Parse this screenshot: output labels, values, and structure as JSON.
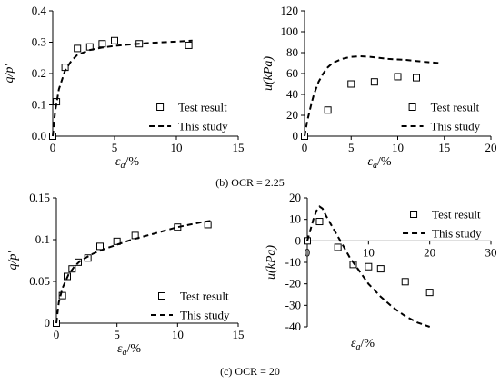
{
  "captions": {
    "b": "(b) OCR = 2.25",
    "c": "(c) OCR = 20"
  },
  "chart_data": [
    {
      "id": "b-left",
      "type": "scatter",
      "xlabel_main": "ε",
      "xlabel_sub": "a",
      "xlabel_unit": "/%",
      "ylabel": "q/p'",
      "xlim": [
        0,
        15
      ],
      "ylim": [
        0,
        0.4
      ],
      "xticks": [
        "0",
        "5",
        "10",
        "15"
      ],
      "yticks": [
        "0.0",
        "0.1",
        "0.2",
        "0.3",
        "0.4"
      ],
      "legend_position": "lower-right",
      "series": [
        {
          "name": "Test result",
          "kind": "markers",
          "x": [
            0.0,
            0.3,
            1.0,
            2.0,
            3.0,
            4.0,
            5.0,
            7.0,
            11.0
          ],
          "y": [
            0.0,
            0.11,
            0.22,
            0.28,
            0.285,
            0.295,
            0.305,
            0.295,
            0.29
          ]
        },
        {
          "name": "This study",
          "kind": "dashed",
          "x": [
            0.0,
            0.2,
            0.5,
            1.0,
            1.5,
            2.0,
            3.0,
            4.0,
            5.0,
            6.0,
            7.0,
            8.0,
            9.0,
            10.0,
            11.3
          ],
          "y": [
            0.0,
            0.08,
            0.15,
            0.21,
            0.24,
            0.26,
            0.275,
            0.283,
            0.288,
            0.292,
            0.295,
            0.298,
            0.3,
            0.302,
            0.305
          ]
        }
      ]
    },
    {
      "id": "b-right",
      "type": "scatter",
      "xlabel_main": "ε",
      "xlabel_sub": "a",
      "xlabel_unit": "/%",
      "ylabel": "u(kPa)",
      "xlim": [
        0,
        20
      ],
      "ylim": [
        0,
        120
      ],
      "xticks": [
        "0",
        "5",
        "10",
        "15",
        "20"
      ],
      "yticks": [
        "0",
        "20",
        "40",
        "60",
        "80",
        "100",
        "120"
      ],
      "legend_position": "lower-right",
      "series": [
        {
          "name": "Test result",
          "kind": "markers",
          "x": [
            0.0,
            2.5,
            5.0,
            7.5,
            10.0,
            12.0
          ],
          "y": [
            0.0,
            25.0,
            50.0,
            52.0,
            57.0,
            56.0
          ]
        },
        {
          "name": "This study",
          "kind": "dashed",
          "x": [
            0.0,
            0.3,
            0.7,
            1.0,
            1.5,
            2.0,
            2.5,
            3.0,
            4.0,
            5.0,
            6.0,
            7.0,
            8.0,
            9.0,
            10.0,
            11.0,
            12.0,
            13.0,
            14.5
          ],
          "y": [
            0.0,
            15.0,
            30.0,
            40.0,
            52.0,
            60.0,
            66.0,
            70.0,
            74.0,
            76.0,
            76.5,
            76.0,
            75.0,
            74.0,
            73.5,
            73.0,
            72.0,
            71.0,
            70.0
          ]
        }
      ]
    },
    {
      "id": "c-left",
      "type": "scatter",
      "xlabel_main": "ε",
      "xlabel_sub": "a",
      "xlabel_unit": "/%",
      "ylabel": "q/p'",
      "xlim": [
        0,
        15
      ],
      "ylim": [
        0,
        0.15
      ],
      "xticks": [
        "0",
        "5",
        "10",
        "15"
      ],
      "yticks": [
        "0",
        "0.05",
        "0.1",
        "0.15"
      ],
      "legend_position": "lower-right",
      "series": [
        {
          "name": "Test result",
          "kind": "markers",
          "x": [
            0.0,
            0.5,
            0.9,
            1.3,
            1.8,
            2.6,
            3.6,
            5.0,
            6.5,
            10.0,
            12.5
          ],
          "y": [
            0.0,
            0.033,
            0.056,
            0.065,
            0.073,
            0.078,
            0.092,
            0.098,
            0.105,
            0.115,
            0.118
          ]
        },
        {
          "name": "This study",
          "kind": "dashed",
          "x": [
            0.0,
            0.2,
            0.5,
            1.0,
            1.5,
            2.0,
            3.0,
            4.0,
            5.0,
            6.0,
            7.0,
            8.0,
            9.0,
            10.0,
            11.0,
            12.0,
            13.0
          ],
          "y": [
            0.0,
            0.025,
            0.042,
            0.058,
            0.068,
            0.075,
            0.083,
            0.089,
            0.094,
            0.099,
            0.103,
            0.107,
            0.111,
            0.115,
            0.118,
            0.121,
            0.123
          ]
        }
      ]
    },
    {
      "id": "c-right",
      "type": "scatter",
      "xlabel_main": "ε",
      "xlabel_sub": "a",
      "xlabel_unit": "/%",
      "ylabel": "u(kPa)",
      "xlim": [
        0,
        30
      ],
      "ylim": [
        -40,
        20
      ],
      "xticks": [
        "0",
        "10",
        "20",
        "30"
      ],
      "yticks": [
        "-40",
        "-30",
        "-20",
        "-10",
        "0",
        "10",
        "20"
      ],
      "legend_position": "upper-right",
      "series": [
        {
          "name": "Test result",
          "kind": "markers",
          "x": [
            0.0,
            2.0,
            5.0,
            7.5,
            10.0,
            12.0,
            16.0,
            20.0
          ],
          "y": [
            0.0,
            9.0,
            -3.0,
            -11.0,
            -12.0,
            -13.0,
            -19.0,
            -24.0
          ]
        },
        {
          "name": "This study",
          "kind": "dashed",
          "x": [
            0.0,
            0.5,
            1.0,
            1.5,
            2.0,
            2.5,
            3.0,
            4.0,
            5.0,
            6.0,
            7.0,
            8.0,
            9.0,
            10.0,
            12.0,
            14.0,
            16.0,
            18.0,
            20.0
          ],
          "y": [
            0.0,
            5.0,
            10.0,
            14.0,
            16.0,
            15.0,
            12.0,
            7.0,
            2.0,
            -3.0,
            -8.0,
            -12.0,
            -16.0,
            -20.0,
            -26.0,
            -31.0,
            -35.0,
            -38.0,
            -40.0
          ]
        }
      ]
    }
  ]
}
